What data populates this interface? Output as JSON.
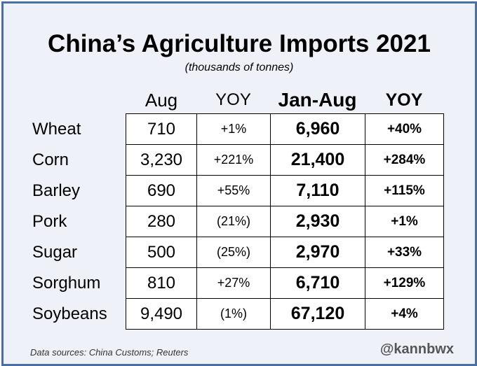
{
  "chart_data": {
    "type": "table",
    "title": "China’s Agriculture Imports 2021",
    "subtitle": "(thousands of tonnes)",
    "columns": [
      "Aug",
      "YOY",
      "Jan-Aug",
      "YOY"
    ],
    "rows": [
      {
        "label": "Wheat",
        "aug": "710",
        "aug_yoy": "+1%",
        "jan_aug": "6,960",
        "jan_aug_yoy": "+40%"
      },
      {
        "label": "Corn",
        "aug": "3,230",
        "aug_yoy": "+221%",
        "jan_aug": "21,400",
        "jan_aug_yoy": "+284%"
      },
      {
        "label": "Barley",
        "aug": "690",
        "aug_yoy": "+55%",
        "jan_aug": "7,110",
        "jan_aug_yoy": "+115%"
      },
      {
        "label": "Pork",
        "aug": "280",
        "aug_yoy": "(21%)",
        "jan_aug": "2,930",
        "jan_aug_yoy": "+1%"
      },
      {
        "label": "Sugar",
        "aug": "500",
        "aug_yoy": "(25%)",
        "jan_aug": "2,970",
        "jan_aug_yoy": "+33%"
      },
      {
        "label": "Sorghum",
        "aug": "810",
        "aug_yoy": "+27%",
        "jan_aug": "6,710",
        "jan_aug_yoy": "+129%"
      },
      {
        "label": "Soybeans",
        "aug": "9,490",
        "aug_yoy": "(1%)",
        "jan_aug": "67,120",
        "jan_aug_yoy": "+4%"
      }
    ],
    "source": "Data sources: China Customs; Reuters",
    "handle": "@kannbwx"
  },
  "colors": {
    "border": "#4a6fa5",
    "background": "#eef2f8",
    "negative": "#e02020"
  }
}
